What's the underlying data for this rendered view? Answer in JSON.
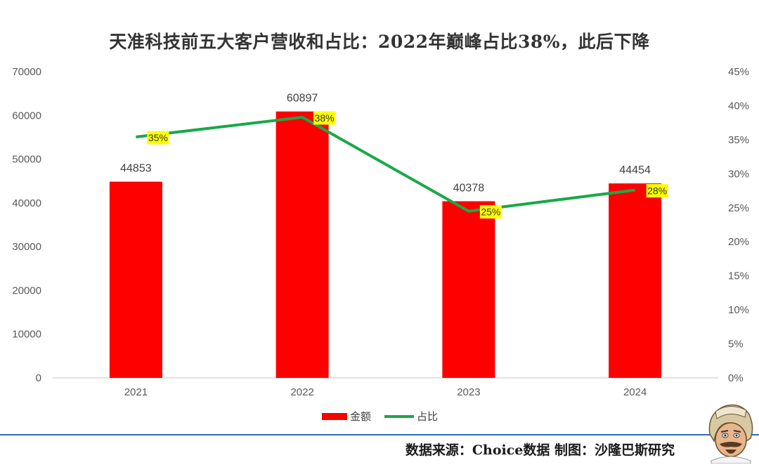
{
  "title": "天准科技前五大客户营收和占比：2022年巅峰占比38%，此后下降",
  "source_note": "数据来源：Choice数据   制图：沙隆巴斯研究",
  "chart_data": {
    "type": "bar",
    "categories": [
      "2021",
      "2022",
      "2023",
      "2024"
    ],
    "series": [
      {
        "name": "金额",
        "type": "bar",
        "axis": "left",
        "color": "#ff0000",
        "values": [
          44853,
          60897,
          40378,
          44454
        ],
        "labels": [
          "44853",
          "60897",
          "40378",
          "44454"
        ]
      },
      {
        "name": "占比",
        "type": "line",
        "axis": "right",
        "color": "#1aa84a",
        "values": [
          35.4,
          38.3,
          24.5,
          27.6
        ],
        "labels": [
          "35%",
          "38%",
          "25%",
          "28%"
        ],
        "label_bg": "#ffff00"
      }
    ],
    "ylim": [
      0,
      70000
    ],
    "yticks": [
      "0",
      "10000",
      "20000",
      "30000",
      "40000",
      "50000",
      "60000",
      "70000"
    ],
    "y2lim": [
      0,
      45
    ],
    "y2ticks": [
      "0%",
      "5%",
      "10%",
      "15%",
      "20%",
      "25%",
      "30%",
      "35%",
      "40%",
      "45%"
    ],
    "legend": "bottom-center",
    "grid": false
  }
}
